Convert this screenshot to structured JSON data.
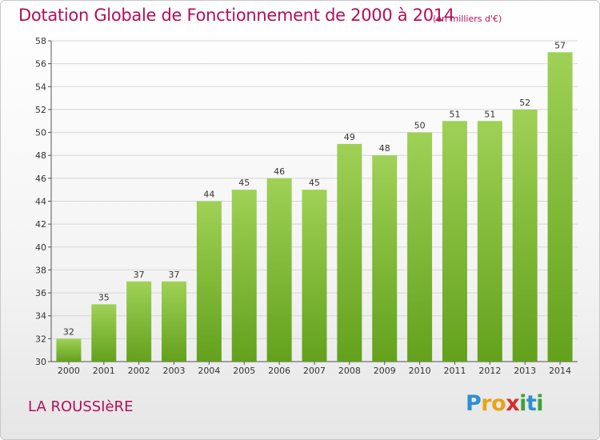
{
  "header": {
    "title": "Dotation Globale de Fonctionnement de 2000 à 2014",
    "subtitle": "(en milliers d'€)"
  },
  "footer": {
    "commune": "LA ROUSSIèRE",
    "logo_letters": [
      "P",
      "r",
      "o",
      "x",
      "i",
      "t",
      "i"
    ],
    "logo_colors": [
      "#2e8fd1",
      "#e8a317",
      "#e8a317",
      "#d62e2e",
      "#3aa33a",
      "#2e8fd1",
      "#3aa33a"
    ]
  },
  "colors": {
    "bar_top": "#9fd156",
    "bar_bottom": "#63a11c",
    "title": "#b40e5a",
    "grid": "#d6d6d6"
  },
  "chart_data": {
    "type": "bar",
    "title": "Dotation Globale de Fonctionnement de 2000 à 2014",
    "subtitle": "(en milliers d'€)",
    "categories": [
      "2000",
      "2001",
      "2002",
      "2003",
      "2004",
      "2005",
      "2006",
      "2007",
      "2008",
      "2009",
      "2010",
      "2011",
      "2012",
      "2013",
      "2014"
    ],
    "values": [
      32,
      35,
      37,
      37,
      44,
      45,
      46,
      45,
      49,
      48,
      50,
      51,
      51,
      52,
      57
    ],
    "ylim": [
      30,
      58
    ],
    "yticks": [
      "30",
      "32",
      "34",
      "36",
      "38",
      "40",
      "42",
      "44",
      "46",
      "48",
      "50",
      "52",
      "54",
      "56",
      "58"
    ],
    "grid": true,
    "xlabel": "",
    "ylabel": ""
  }
}
